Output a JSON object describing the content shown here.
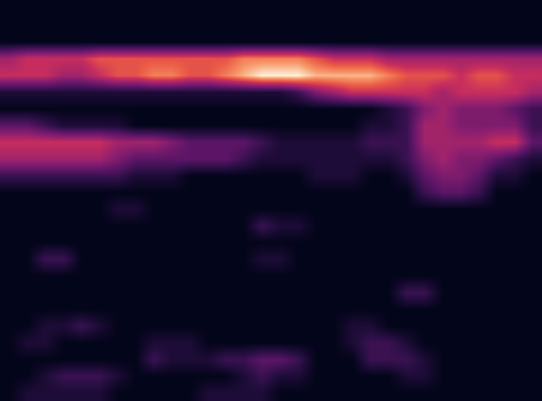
{
  "chart_data": {
    "type": "heatmap",
    "color": "magma",
    "tick_labels": false,
    "zlim": [
      0,
      10
    ],
    "cells": [
      [
        0,
        0,
        0,
        0,
        0,
        0,
        0,
        0,
        0,
        0,
        0,
        0,
        0,
        0,
        0,
        0,
        0,
        0,
        0,
        0,
        0,
        0,
        0,
        0,
        0,
        0,
        0,
        0,
        0,
        0
      ],
      [
        0,
        0,
        0,
        0,
        0,
        0,
        0,
        0,
        0,
        0,
        0,
        0,
        0,
        0,
        0,
        0,
        0,
        0,
        0,
        0,
        0,
        0,
        0,
        0,
        0,
        0,
        0,
        0,
        0,
        0
      ],
      [
        0,
        0,
        0,
        0,
        0,
        0,
        0,
        0,
        0,
        0,
        0,
        0,
        0,
        0,
        0,
        0,
        0,
        0,
        0,
        0,
        0,
        0,
        0,
        0,
        0,
        0,
        0,
        0,
        0,
        0
      ],
      [
        5,
        6,
        6,
        6,
        6,
        7,
        7,
        7,
        7,
        7,
        7,
        7,
        7,
        8,
        8,
        8,
        8,
        7,
        6,
        6,
        6,
        5,
        5,
        5,
        5,
        5,
        5,
        5,
        5,
        5
      ],
      [
        6,
        6,
        6,
        5,
        5,
        6,
        7,
        7,
        8,
        8,
        7,
        7,
        8,
        9,
        10,
        10,
        10,
        9,
        9,
        9,
        9,
        8,
        7,
        7,
        7,
        6,
        7,
        7,
        6,
        6
      ],
      [
        1,
        1,
        1,
        1,
        1,
        1,
        1,
        1,
        1,
        1,
        1,
        1,
        1,
        1,
        1,
        1,
        2,
        4,
        5,
        6,
        6,
        6,
        6,
        6,
        5,
        6,
        6,
        6,
        6,
        5
      ],
      [
        0,
        0,
        0,
        0,
        0,
        0,
        0,
        0,
        0,
        0,
        0,
        0,
        0,
        0,
        0,
        0,
        0,
        0,
        0,
        0,
        0,
        1,
        2,
        4,
        5,
        4,
        4,
        4,
        3,
        2
      ],
      [
        3,
        3,
        2,
        1,
        1,
        1,
        1,
        0,
        0,
        0,
        0,
        0,
        0,
        0,
        0,
        0,
        0,
        0,
        0,
        0,
        1,
        1,
        2,
        5,
        5,
        4,
        4,
        4,
        4,
        2
      ],
      [
        6,
        6,
        6,
        6,
        6,
        6,
        5,
        5,
        5,
        4,
        3,
        3,
        3,
        3,
        2,
        1,
        1,
        1,
        1,
        1,
        2,
        2,
        2,
        5,
        5,
        5,
        5,
        6,
        6,
        3
      ],
      [
        5,
        5,
        5,
        5,
        5,
        5,
        4,
        3,
        3,
        3,
        3,
        3,
        3,
        2,
        1,
        1,
        1,
        1,
        1,
        1,
        1,
        1,
        2,
        4,
        5,
        4,
        4,
        3,
        2,
        1
      ],
      [
        2,
        2,
        2,
        2,
        2,
        2,
        2,
        1,
        1,
        1,
        0,
        0,
        0,
        0,
        0,
        0,
        0,
        1,
        1,
        1,
        0,
        0,
        1,
        3,
        4,
        4,
        3,
        1,
        1,
        0
      ],
      [
        0,
        0,
        0,
        0,
        0,
        0,
        0,
        0,
        0,
        0,
        0,
        0,
        0,
        0,
        0,
        0,
        0,
        0,
        0,
        0,
        0,
        0,
        0,
        2,
        3,
        3,
        2,
        0,
        0,
        0
      ],
      [
        0,
        0,
        0,
        0,
        0,
        0,
        1,
        1,
        0,
        0,
        0,
        0,
        0,
        0,
        0,
        0,
        0,
        0,
        0,
        0,
        0,
        0,
        0,
        0,
        0,
        0,
        0,
        0,
        0,
        0
      ],
      [
        0,
        0,
        0,
        0,
        0,
        0,
        0,
        0,
        0,
        0,
        0,
        0,
        0,
        0,
        2,
        1,
        1,
        0,
        0,
        0,
        0,
        0,
        0,
        0,
        0,
        0,
        0,
        0,
        0,
        0
      ],
      [
        0,
        0,
        0,
        0,
        0,
        0,
        0,
        0,
        0,
        0,
        0,
        0,
        0,
        0,
        0,
        0,
        0,
        0,
        0,
        0,
        0,
        0,
        0,
        0,
        0,
        0,
        0,
        0,
        0,
        0
      ],
      [
        0,
        0,
        2,
        2,
        0,
        0,
        0,
        0,
        0,
        0,
        0,
        0,
        0,
        0,
        1,
        1,
        0,
        0,
        0,
        0,
        0,
        0,
        0,
        0,
        0,
        0,
        0,
        0,
        0,
        0
      ],
      [
        0,
        0,
        0,
        0,
        0,
        0,
        0,
        0,
        0,
        0,
        0,
        0,
        0,
        0,
        0,
        0,
        0,
        0,
        0,
        0,
        0,
        0,
        0,
        0,
        0,
        0,
        0,
        0,
        0,
        0
      ],
      [
        0,
        0,
        0,
        0,
        0,
        0,
        0,
        0,
        0,
        0,
        0,
        0,
        0,
        0,
        0,
        0,
        0,
        0,
        0,
        0,
        0,
        0,
        2,
        2,
        0,
        0,
        0,
        0,
        0,
        0
      ],
      [
        0,
        0,
        0,
        0,
        0,
        0,
        0,
        0,
        0,
        0,
        0,
        0,
        0,
        0,
        0,
        0,
        0,
        0,
        0,
        0,
        0,
        0,
        0,
        0,
        0,
        0,
        0,
        0,
        0,
        0
      ],
      [
        0,
        0,
        1,
        1,
        2,
        1,
        0,
        0,
        0,
        0,
        0,
        0,
        0,
        0,
        0,
        0,
        0,
        0,
        0,
        1,
        1,
        0,
        0,
        0,
        0,
        0,
        0,
        0,
        0,
        0
      ],
      [
        0,
        1,
        1,
        0,
        0,
        0,
        0,
        0,
        1,
        1,
        1,
        0,
        0,
        0,
        0,
        0,
        0,
        0,
        0,
        1,
        2,
        2,
        1,
        0,
        0,
        0,
        0,
        0,
        0,
        0
      ],
      [
        0,
        0,
        0,
        0,
        0,
        0,
        0,
        0,
        2,
        1,
        1,
        1,
        2,
        2,
        3,
        3,
        2,
        0,
        0,
        0,
        2,
        2,
        2,
        1,
        0,
        0,
        0,
        0,
        0,
        0
      ],
      [
        0,
        0,
        1,
        2,
        2,
        2,
        1,
        0,
        0,
        0,
        0,
        0,
        0,
        1,
        2,
        1,
        1,
        0,
        0,
        0,
        0,
        0,
        1,
        1,
        0,
        0,
        0,
        0,
        0,
        0
      ],
      [
        0,
        1,
        1,
        1,
        1,
        1,
        0,
        0,
        0,
        0,
        0,
        1,
        1,
        1,
        1,
        0,
        0,
        0,
        0,
        0,
        0,
        0,
        0,
        0,
        0,
        0,
        0,
        0,
        0,
        0
      ]
    ]
  }
}
